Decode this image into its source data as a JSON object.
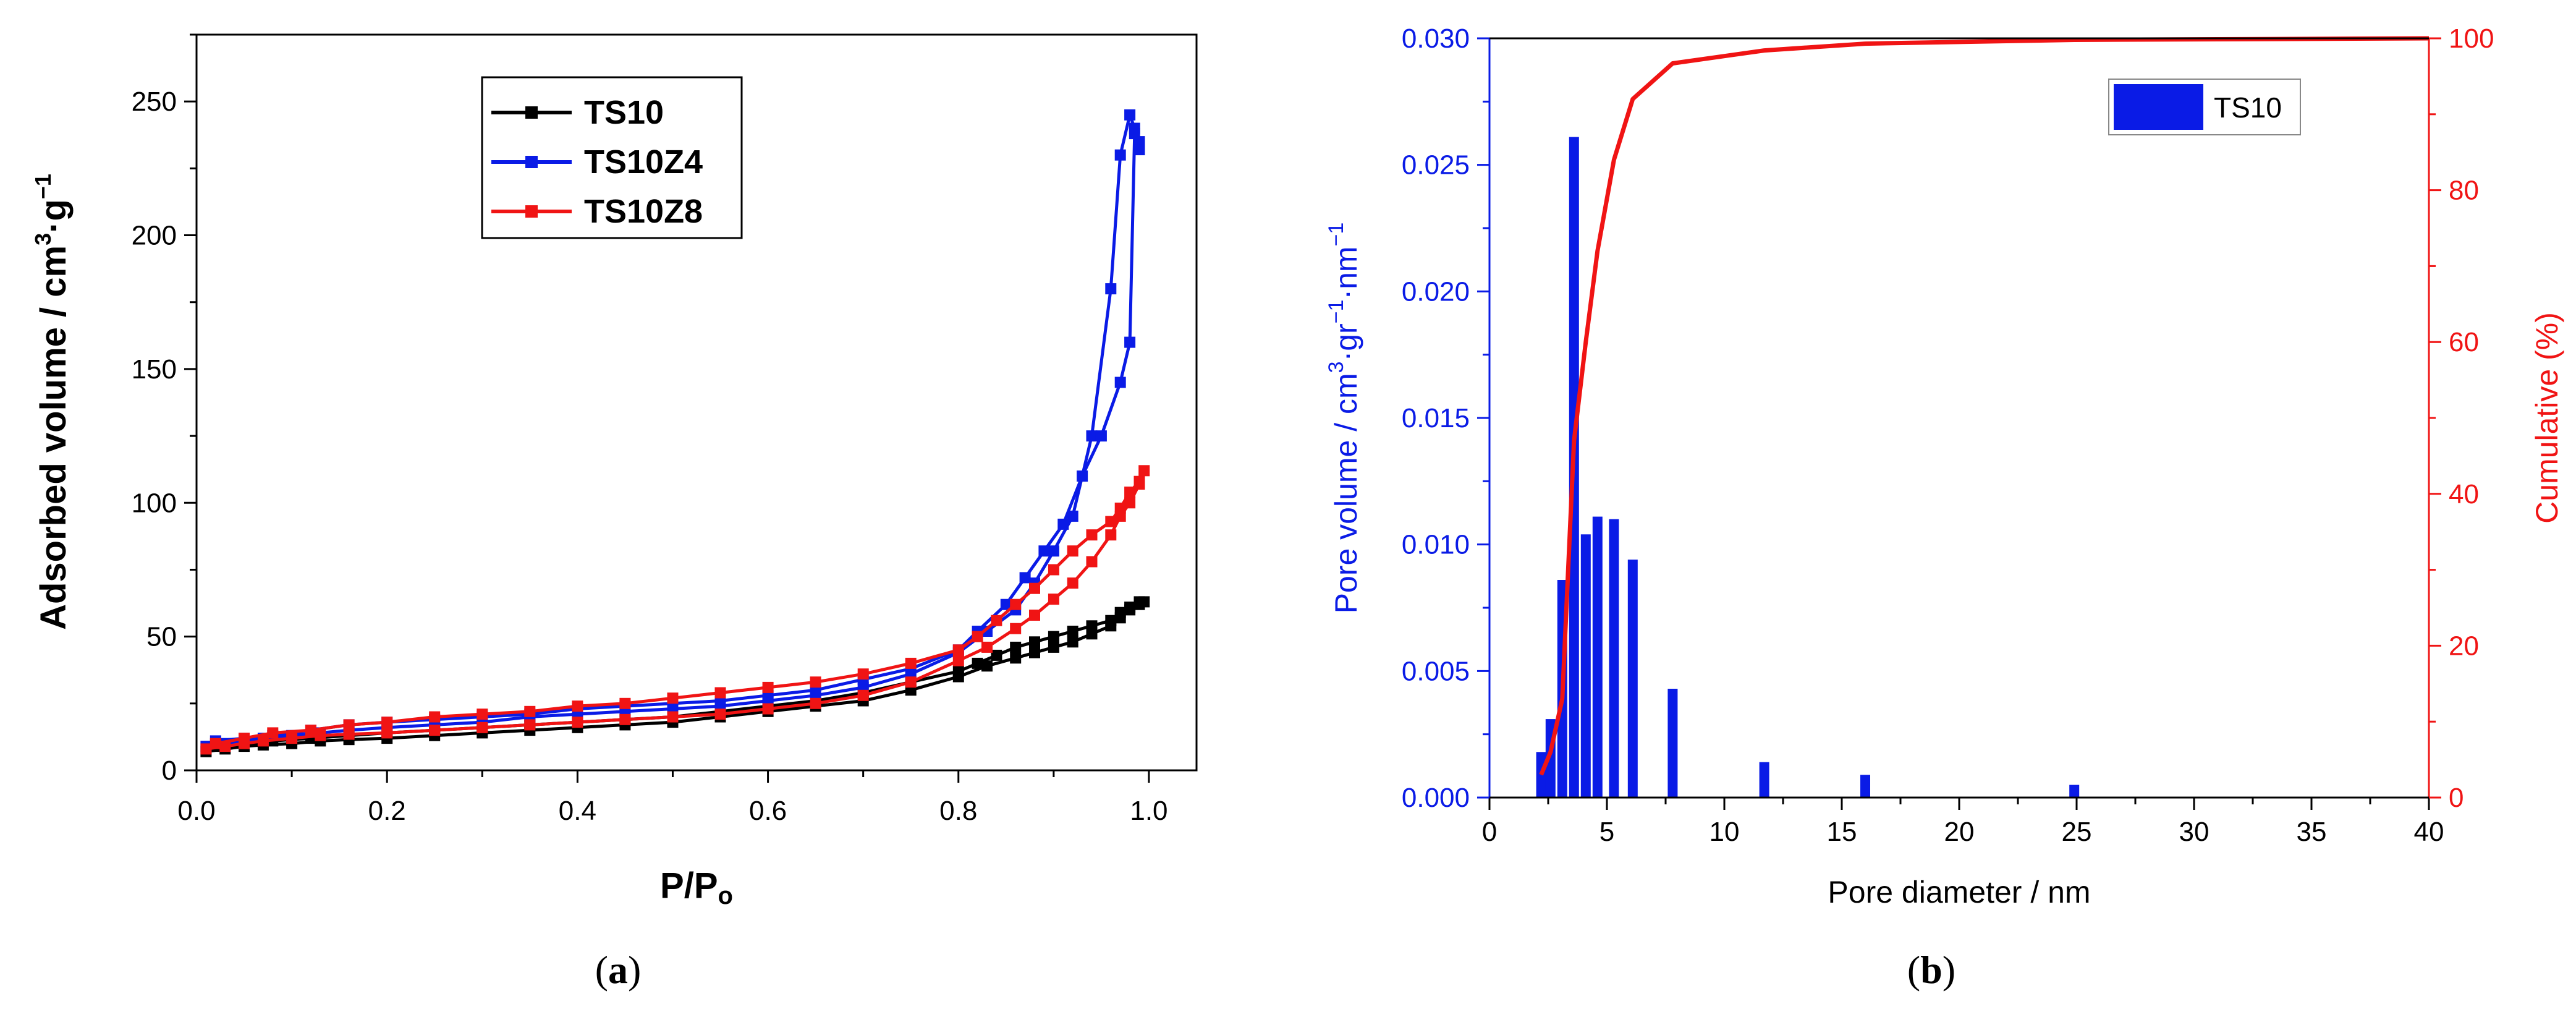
{
  "chart_data": [
    {
      "id": "a",
      "type": "line",
      "panel_label": "(a)",
      "panel_letter": "a",
      "xlabel_parts": {
        "main": "P/P",
        "sub": "o"
      },
      "ylabel_parts": {
        "main": "Adsorbed volume / cm",
        "sup1": "3",
        "mid": "·g",
        "sup2": "−1"
      },
      "xlim": [
        0.0,
        1.05
      ],
      "ylim": [
        0,
        275
      ],
      "x_ticks": [
        0.0,
        0.2,
        0.4,
        0.6,
        0.8,
        1.0
      ],
      "x_tick_labels": [
        "0.0",
        "0.2",
        "0.4",
        "0.6",
        "0.8",
        "1.0"
      ],
      "y_ticks": [
        0,
        50,
        100,
        150,
        200,
        250
      ],
      "y_tick_labels": [
        "0",
        "50",
        "100",
        "150",
        "200",
        "250"
      ],
      "legend_position": "top-center",
      "series": [
        {
          "name": "TS10",
          "color": "#000000",
          "x": [
            0.01,
            0.03,
            0.05,
            0.07,
            0.1,
            0.13,
            0.16,
            0.2,
            0.25,
            0.3,
            0.35,
            0.4,
            0.45,
            0.5,
            0.55,
            0.6,
            0.65,
            0.7,
            0.75,
            0.8,
            0.83,
            0.86,
            0.88,
            0.9,
            0.92,
            0.94,
            0.96,
            0.97,
            0.98,
            0.99,
            0.995,
            0.99,
            0.98,
            0.97,
            0.96,
            0.94,
            0.92,
            0.9,
            0.88,
            0.86,
            0.84,
            0.82,
            0.8,
            0.75,
            0.7,
            0.65,
            0.6,
            0.55,
            0.5,
            0.45,
            0.4,
            0.35,
            0.3,
            0.25,
            0.2,
            0.16,
            0.12,
            0.08,
            0.05,
            0.02
          ],
          "values": [
            7,
            8,
            9,
            9.5,
            10,
            11,
            11.5,
            12,
            13,
            14,
            15,
            16,
            17,
            18,
            20,
            22,
            24,
            26,
            30,
            35,
            39,
            42,
            44,
            46,
            48,
            51,
            54,
            57,
            60,
            62,
            63,
            63,
            61,
            59,
            56,
            54,
            52,
            50,
            48,
            46,
            43,
            40,
            37,
            33,
            29,
            26,
            24,
            22,
            20,
            19,
            18,
            17,
            16,
            15,
            14,
            13,
            12,
            11,
            10,
            9
          ]
        },
        {
          "name": "TS10Z4",
          "color": "#0a1be6",
          "x": [
            0.01,
            0.03,
            0.05,
            0.07,
            0.1,
            0.13,
            0.16,
            0.2,
            0.25,
            0.3,
            0.35,
            0.4,
            0.45,
            0.5,
            0.55,
            0.6,
            0.65,
            0.7,
            0.75,
            0.8,
            0.83,
            0.86,
            0.88,
            0.9,
            0.92,
            0.94,
            0.96,
            0.97,
            0.98,
            0.985,
            0.99,
            0.99,
            0.985,
            0.98,
            0.97,
            0.95,
            0.93,
            0.91,
            0.89,
            0.87,
            0.85,
            0.82,
            0.8,
            0.75,
            0.7,
            0.65,
            0.6,
            0.55,
            0.5,
            0.45,
            0.4,
            0.35,
            0.3,
            0.25,
            0.2,
            0.16,
            0.12,
            0.08,
            0.05,
            0.02
          ],
          "values": [
            9,
            10,
            11,
            12,
            13,
            14,
            15,
            16,
            17,
            18,
            20,
            21,
            22,
            23,
            24,
            26,
            28,
            31,
            36,
            44,
            52,
            60,
            70,
            82,
            95,
            125,
            180,
            230,
            245,
            240,
            235,
            232,
            238,
            160,
            145,
            125,
            110,
            92,
            82,
            72,
            62,
            52,
            45,
            38,
            34,
            30,
            28,
            26,
            25,
            24,
            23,
            21,
            20,
            19,
            18,
            17,
            15,
            13,
            12,
            11
          ]
        },
        {
          "name": "TS10Z8",
          "color": "#f01414",
          "x": [
            0.01,
            0.03,
            0.05,
            0.07,
            0.1,
            0.13,
            0.16,
            0.2,
            0.25,
            0.3,
            0.35,
            0.4,
            0.45,
            0.5,
            0.55,
            0.6,
            0.65,
            0.7,
            0.75,
            0.8,
            0.83,
            0.86,
            0.88,
            0.9,
            0.92,
            0.94,
            0.96,
            0.97,
            0.98,
            0.99,
            0.995,
            0.99,
            0.98,
            0.97,
            0.96,
            0.94,
            0.92,
            0.9,
            0.88,
            0.86,
            0.84,
            0.82,
            0.8,
            0.75,
            0.7,
            0.65,
            0.6,
            0.55,
            0.5,
            0.45,
            0.4,
            0.35,
            0.3,
            0.25,
            0.2,
            0.16,
            0.12,
            0.08,
            0.05,
            0.02
          ],
          "values": [
            8,
            9,
            10,
            11,
            12,
            13,
            13.5,
            14,
            15,
            16,
            17,
            18,
            19,
            20,
            21,
            23,
            25,
            28,
            33,
            41,
            46,
            53,
            58,
            64,
            70,
            78,
            88,
            95,
            100,
            107,
            112,
            108,
            104,
            98,
            93,
            88,
            82,
            75,
            68,
            62,
            56,
            50,
            45,
            40,
            36,
            33,
            31,
            29,
            27,
            25,
            24,
            22,
            21,
            20,
            18,
            17,
            15,
            14,
            12,
            10
          ]
        }
      ]
    },
    {
      "id": "b",
      "type": "bar",
      "panel_label": "(b)",
      "panel_letter": "b",
      "xlabel": "Pore diameter / nm",
      "ylabel_parts": {
        "main": "Pore volume / cm",
        "sup1": "3",
        "mid1": "·gr",
        "sup2": "−1",
        "mid2": "·nm",
        "sup3": "−1"
      },
      "y2label": "Cumulative (%)",
      "xlim": [
        0,
        40
      ],
      "ylim": [
        0,
        0.03
      ],
      "y2lim": [
        0,
        100
      ],
      "x_ticks": [
        0,
        5,
        10,
        15,
        20,
        25,
        30,
        35,
        40
      ],
      "x_tick_labels": [
        "0",
        "5",
        "10",
        "15",
        "20",
        "25",
        "30",
        "35",
        "40"
      ],
      "y_ticks": [
        0,
        0.005,
        0.01,
        0.015,
        0.02,
        0.025,
        0.03
      ],
      "y_tick_labels": [
        "0.000",
        "0.005",
        "0.010",
        "0.015",
        "0.020",
        "0.025",
        "0.030"
      ],
      "y2_ticks": [
        0,
        20,
        40,
        60,
        80,
        100
      ],
      "y2_tick_labels": [
        "0",
        "20",
        "40",
        "60",
        "80",
        "100"
      ],
      "bar_color": "#0a1be6",
      "line_color": "#f01414",
      "axis_color_left": "#0a1be6",
      "axis_color_right": "#f01414",
      "legend_position": "top-right",
      "legend": [
        "TS10"
      ],
      "bars": {
        "name": "TS10",
        "x": [
          2.2,
          2.6,
          3.1,
          3.6,
          4.1,
          4.6,
          5.3,
          6.1,
          7.8,
          11.7,
          16.0,
          24.9
        ],
        "values": [
          0.0018,
          0.0031,
          0.0086,
          0.0261,
          0.0104,
          0.0111,
          0.011,
          0.0094,
          0.0043,
          0.0014,
          0.0009,
          0.0005
        ]
      },
      "cumulative": {
        "name": "Cumulative",
        "x": [
          2.2,
          2.6,
          3.1,
          3.6,
          4.1,
          4.6,
          5.3,
          6.1,
          7.8,
          11.7,
          16.0,
          24.9,
          40
        ],
        "values": [
          3,
          6,
          13,
          47,
          60,
          72,
          84,
          92,
          96.7,
          98.4,
          99.3,
          99.8,
          100
        ]
      }
    }
  ]
}
